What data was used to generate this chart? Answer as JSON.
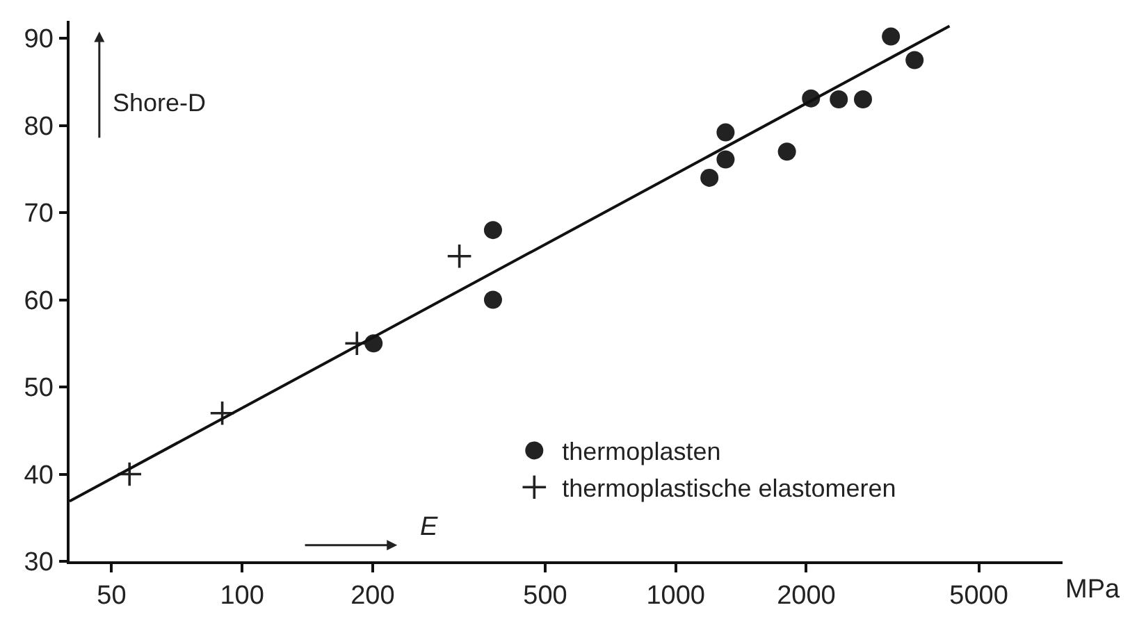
{
  "chart_data": {
    "type": "scatter",
    "xlabel": "E",
    "ylabel": "Shore-D",
    "log": "x",
    "legend": "bottom right",
    "xlim": [
      40,
      7800
    ],
    "xticks": [
      50,
      100,
      200,
      500,
      1000,
      2000,
      5000
    ],
    "ylim": [
      30,
      92
    ],
    "yticks": [
      30,
      40,
      50,
      60,
      70,
      80,
      90
    ],
    "annotations": [
      "MPa"
    ],
    "series": [
      {
        "name": "thermoplasten",
        "marker": "circle",
        "color": "#222222",
        "x": [
          201,
          379,
          379,
          1196,
          1303,
          1303,
          1805,
          2051,
          2377,
          2703,
          3135,
          3555
        ],
        "values": [
          55,
          68,
          60,
          74,
          79.2,
          76.1,
          77,
          83.1,
          83,
          83,
          90.2,
          87.5
        ]
      },
      {
        "name": "thermoplastische elastomeren",
        "marker": "cross",
        "color": "#222222",
        "x": [
          55,
          90,
          184,
          317
        ],
        "values": [
          40,
          47,
          55,
          65
        ]
      },
      {
        "type": "line",
        "marker": "none",
        "line_style": "solid",
        "color": "#111111",
        "x": [
          40,
          4280
        ],
        "values": [
          36.9,
          91.4
        ]
      }
    ]
  }
}
